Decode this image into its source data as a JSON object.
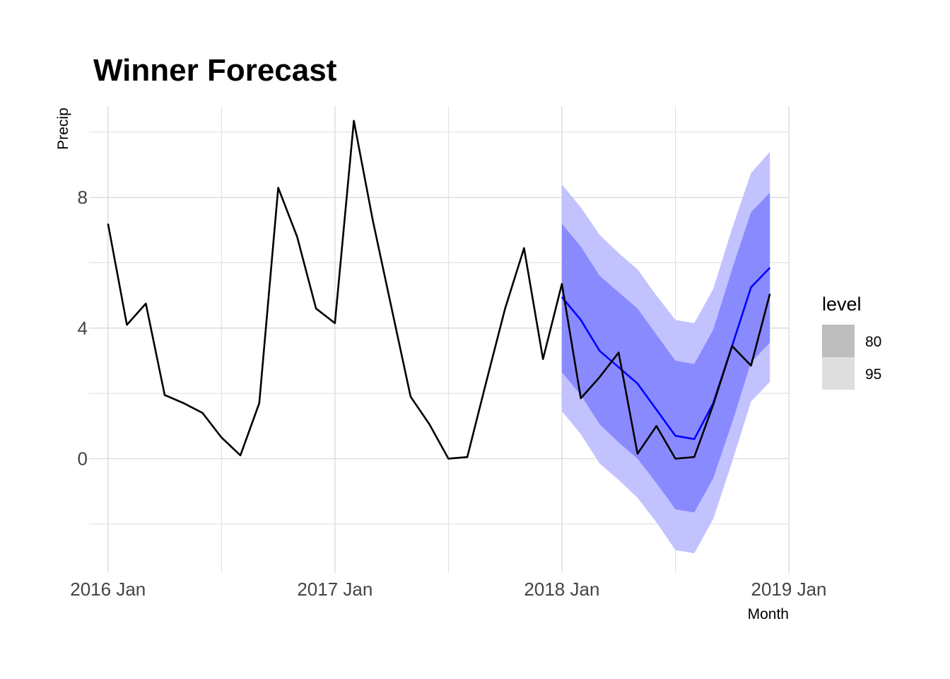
{
  "chart_data": {
    "type": "line",
    "title": "Winner Forecast",
    "xlabel": "Month",
    "ylabel": "Precip",
    "x_range": [
      "2015-12",
      "2019-01"
    ],
    "ylim": [
      -3.5,
      10.8
    ],
    "y_ticks": [
      0,
      4,
      8
    ],
    "x_ticks": [
      "2016 Jan",
      "2017 Jan",
      "2018 Jan",
      "2019 Jan"
    ],
    "x_tick_months": [
      "2016-01",
      "2017-01",
      "2018-01",
      "2019-01"
    ],
    "grid": true,
    "legend": {
      "title": "level",
      "position": "right",
      "entries": [
        {
          "label": "80",
          "color": "#bdbdbd"
        },
        {
          "label": "95",
          "color": "#dedede"
        }
      ]
    },
    "colors": {
      "actual": "#000000",
      "forecast": "#0000ff",
      "band80": "#8a8aff",
      "band95": "#c2c2ff"
    },
    "series": [
      {
        "months": [
          "2016-01",
          "2016-02",
          "2016-03",
          "2016-04",
          "2016-05",
          "2016-06",
          "2016-07",
          "2016-08",
          "2016-09",
          "2016-10",
          "2016-11",
          "2016-12",
          "2017-01",
          "2017-02",
          "2017-03",
          "2017-04",
          "2017-05",
          "2017-06",
          "2017-07",
          "2017-08",
          "2017-09",
          "2017-10",
          "2017-11",
          "2017-12",
          "2018-01",
          "2018-02",
          "2018-03",
          "2018-04",
          "2018-05",
          "2018-06",
          "2018-07",
          "2018-08",
          "2018-09",
          "2018-10",
          "2018-11",
          "2018-12"
        ],
        "values": [
          7.2,
          4.1,
          4.75,
          1.95,
          1.7,
          1.4,
          0.65,
          0.1,
          1.7,
          8.3,
          6.8,
          4.6,
          4.15,
          10.35,
          7.3,
          4.6,
          1.9,
          1.05,
          0.0,
          0.05,
          2.35,
          4.6,
          6.45,
          3.05,
          5.35,
          1.85,
          2.5,
          3.25,
          0.15,
          1.0,
          0.0,
          0.05,
          1.65,
          3.45,
          2.85,
          5.05
        ]
      },
      {
        "months": [
          "2018-01",
          "2018-02",
          "2018-03",
          "2018-04",
          "2018-05",
          "2018-06",
          "2018-07",
          "2018-08",
          "2018-09",
          "2018-10",
          "2018-11",
          "2018-12"
        ],
        "values": [
          4.95,
          4.25,
          3.3,
          2.8,
          2.3,
          1.5,
          0.7,
          0.6,
          1.7,
          3.45,
          5.25,
          5.85
        ],
        "lo80": [
          2.65,
          1.95,
          1.05,
          0.5,
          0.0,
          -0.75,
          -1.55,
          -1.65,
          -0.6,
          1.1,
          2.95,
          3.55
        ],
        "hi80": [
          7.2,
          6.5,
          5.6,
          5.1,
          4.6,
          3.8,
          3.0,
          2.9,
          3.95,
          5.8,
          7.55,
          8.15
        ],
        "lo95": [
          1.45,
          0.75,
          -0.15,
          -0.65,
          -1.2,
          -1.95,
          -2.8,
          -2.9,
          -1.85,
          -0.1,
          1.75,
          2.35
        ],
        "hi95": [
          8.4,
          7.7,
          6.85,
          6.3,
          5.8,
          5.0,
          4.25,
          4.15,
          5.2,
          7.05,
          8.75,
          9.4
        ]
      }
    ]
  }
}
